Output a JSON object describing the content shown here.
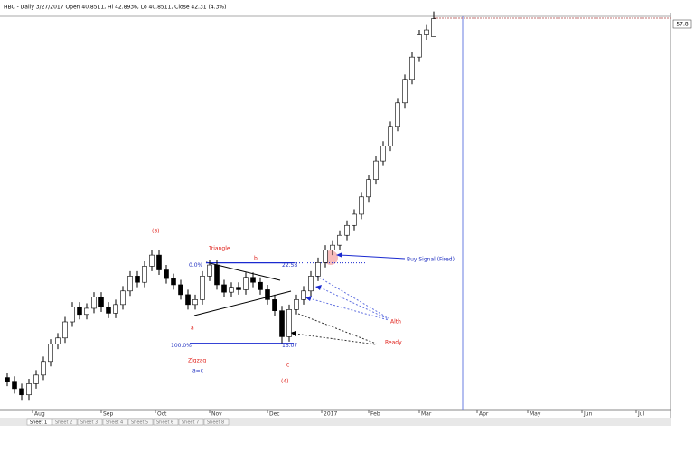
{
  "chart_data": {
    "type": "candlestick",
    "title": "HBC - Daily 3/27/2017 Open 40.8511, Hi 42.8936, Lo 40.8511, Close 42.31 (4.3%)",
    "price_label": "57.8",
    "ylim": [
      10.2,
      42.5
    ],
    "xlim": [
      -1,
      91.75
    ],
    "xticks": [
      {
        "value": 3.5,
        "label": "Aug"
      },
      {
        "value": 13,
        "label": "Sep"
      },
      {
        "value": 20.5,
        "label": "Oct"
      },
      {
        "value": 28,
        "label": "Nov"
      },
      {
        "value": 36,
        "label": "Dec"
      },
      {
        "value": 43.5,
        "label": "2017"
      },
      {
        "value": 50,
        "label": "Feb"
      },
      {
        "value": 57,
        "label": "Mar"
      },
      {
        "value": 65,
        "label": "Apr"
      },
      {
        "value": 72,
        "label": "May"
      },
      {
        "value": 79.5,
        "label": "Jun"
      },
      {
        "value": 87,
        "label": "Jul"
      }
    ],
    "candles": [
      [
        13.3,
        13.7,
        12.6,
        13.0
      ],
      [
        13.0,
        13.4,
        12.0,
        12.4
      ],
      [
        12.4,
        12.8,
        11.5,
        11.9
      ],
      [
        11.9,
        13.2,
        11.5,
        12.8
      ],
      [
        12.8,
        13.9,
        12.4,
        13.5
      ],
      [
        13.5,
        15.0,
        13.1,
        14.6
      ],
      [
        14.6,
        16.4,
        14.2,
        16.0
      ],
      [
        16.0,
        16.9,
        15.6,
        16.5
      ],
      [
        16.5,
        18.2,
        16.1,
        17.8
      ],
      [
        17.8,
        19.4,
        17.4,
        19.0
      ],
      [
        19.0,
        19.4,
        18.0,
        18.4
      ],
      [
        18.4,
        19.3,
        18.0,
        18.9
      ],
      [
        18.9,
        20.2,
        18.5,
        19.8
      ],
      [
        19.8,
        20.2,
        18.6,
        19.0
      ],
      [
        19.0,
        19.4,
        18.1,
        18.5
      ],
      [
        18.5,
        19.6,
        18.1,
        19.2
      ],
      [
        19.2,
        20.7,
        18.8,
        20.3
      ],
      [
        20.3,
        21.9,
        19.9,
        21.5
      ],
      [
        21.5,
        21.9,
        20.6,
        21.0
      ],
      [
        21.0,
        22.7,
        20.6,
        22.3
      ],
      [
        22.3,
        23.6,
        21.9,
        23.2
      ],
      [
        23.2,
        23.6,
        21.6,
        22.0
      ],
      [
        22.0,
        22.4,
        20.9,
        21.3
      ],
      [
        21.3,
        21.7,
        20.4,
        20.8
      ],
      [
        20.8,
        21.2,
        19.6,
        20.0
      ],
      [
        20.0,
        20.4,
        18.8,
        19.2
      ],
      [
        19.2,
        20.0,
        18.8,
        19.6
      ],
      [
        19.6,
        21.9,
        19.2,
        21.5
      ],
      [
        21.5,
        22.8,
        21.1,
        22.4
      ],
      [
        22.4,
        22.8,
        20.4,
        20.8
      ],
      [
        20.8,
        21.2,
        19.8,
        20.2
      ],
      [
        20.2,
        21.0,
        19.8,
        20.6
      ],
      [
        20.6,
        21.0,
        20.0,
        20.4
      ],
      [
        20.4,
        21.8,
        20.0,
        21.4
      ],
      [
        21.4,
        21.8,
        20.6,
        21.0
      ],
      [
        21.0,
        21.4,
        20.0,
        20.4
      ],
      [
        20.4,
        20.8,
        19.2,
        19.6
      ],
      [
        19.6,
        20.0,
        18.3,
        18.7
      ],
      [
        18.7,
        19.1,
        16.07,
        16.6
      ],
      [
        16.6,
        19.2,
        16.2,
        18.8
      ],
      [
        18.8,
        20.0,
        18.4,
        19.6
      ],
      [
        19.6,
        20.7,
        19.2,
        20.3
      ],
      [
        20.3,
        21.9,
        19.9,
        21.5
      ],
      [
        21.5,
        23.0,
        21.1,
        22.6
      ],
      [
        22.6,
        24.0,
        22.2,
        23.6
      ],
      [
        23.6,
        24.4,
        23.2,
        24.0
      ],
      [
        24.0,
        25.2,
        23.6,
        24.8
      ],
      [
        24.8,
        26.0,
        24.4,
        25.6
      ],
      [
        25.6,
        26.9,
        25.2,
        26.5
      ],
      [
        26.5,
        28.3,
        26.1,
        27.9
      ],
      [
        27.9,
        29.7,
        27.5,
        29.3
      ],
      [
        29.3,
        31.2,
        28.9,
        30.8
      ],
      [
        30.8,
        32.4,
        30.4,
        32.0
      ],
      [
        32.0,
        34.0,
        31.6,
        33.6
      ],
      [
        33.6,
        35.9,
        33.2,
        35.5
      ],
      [
        35.5,
        37.8,
        35.1,
        37.4
      ],
      [
        37.4,
        39.6,
        37.0,
        39.2
      ],
      [
        39.2,
        41.4,
        38.8,
        41.0
      ],
      [
        41.0,
        41.8,
        40.6,
        41.4
      ],
      [
        40.8511,
        42.8936,
        40.8511,
        42.31
      ]
    ],
    "fib_levels": [
      {
        "label": "0.0%",
        "value": 22.58
      },
      {
        "label": "100.0%",
        "value": 16.07
      }
    ],
    "annotations": [
      "(3)",
      "Triangle",
      "b",
      "a",
      "Zigzag",
      "a=c",
      "c",
      "(4)",
      "Buy Signal (Fired)",
      "Alth",
      "Ready"
    ],
    "sheets": [
      "Sheet 1",
      "Sheet 2",
      "Sheet 3",
      "Sheet 4",
      "Sheet 5",
      "Sheet 6",
      "Sheet 7",
      "Sheet 8"
    ]
  }
}
